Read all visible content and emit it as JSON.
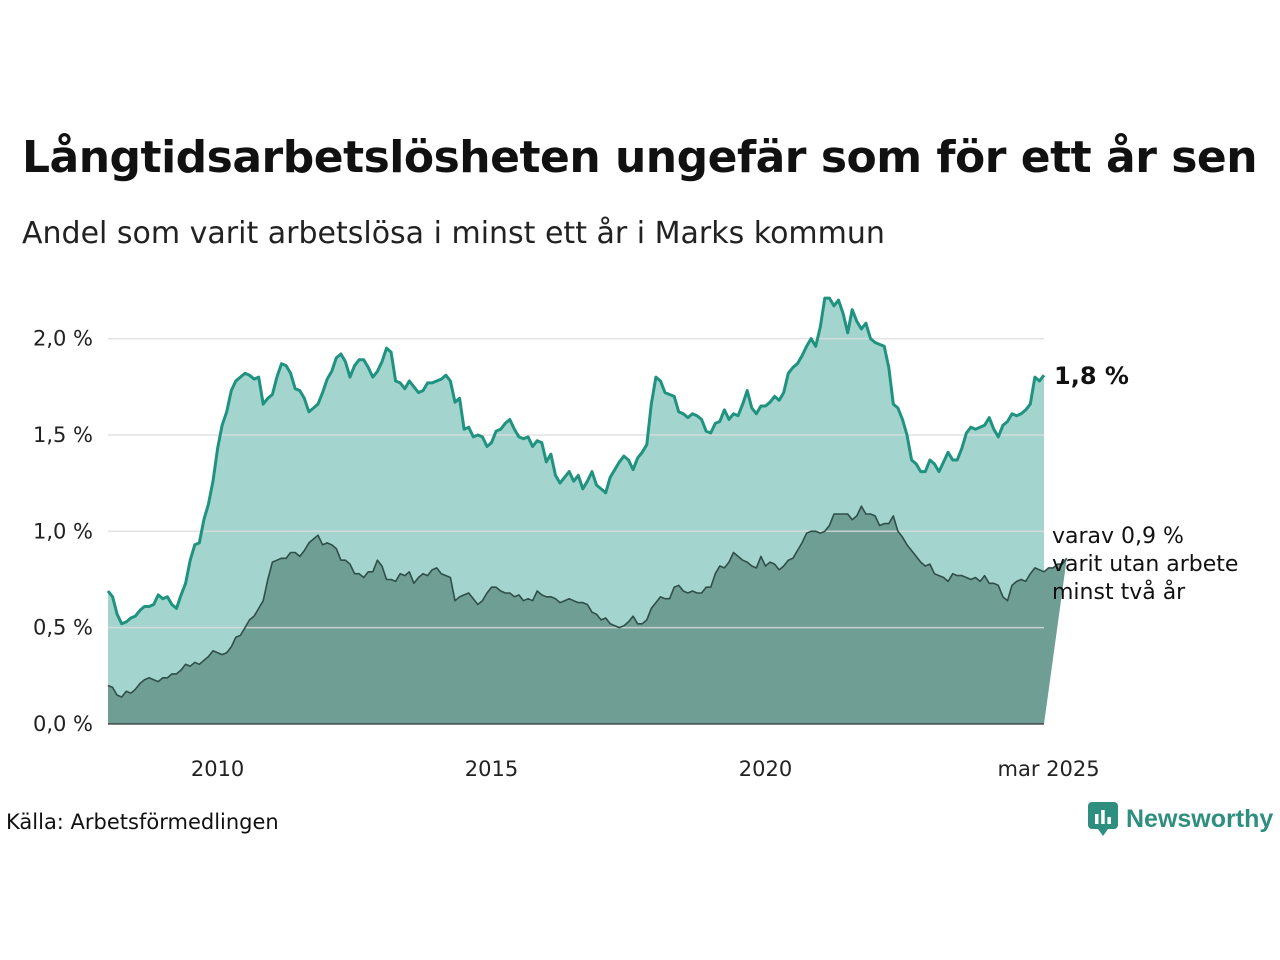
{
  "header": {
    "title": "Långtidsarbetslösheten ungefär som för ett år sen",
    "subtitle": "Andel som varit arbetslösa i minst ett år i Marks kommun"
  },
  "footer": {
    "source": "Källa: Arbetsförmedlingen",
    "brand": "Newsworthy"
  },
  "colors": {
    "total_line": "#1f9280",
    "total_fill": "#a3d5ce",
    "longterm_line": "#2f4f48",
    "longterm_fill": "#6f9e95",
    "grid": "#dddddd"
  },
  "chart_data": {
    "type": "area",
    "x_start": "2008-01",
    "x_end": "2025-03",
    "x_ticks": [
      "2010",
      "2015",
      "2020",
      "mar 2025"
    ],
    "y_ticks": [
      "0,0 %",
      "0,5 %",
      "1,0 %",
      "1,5 %",
      "2,0 %"
    ],
    "ylim": [
      0,
      2.2
    ],
    "grid": true,
    "annotations": {
      "last_total": "1,8 %",
      "last_longterm": [
        "varav 0,9 %",
        "varit utan arbete",
        "minst två år"
      ]
    },
    "series": [
      {
        "key": "total",
        "values": [
          0.69,
          0.66,
          0.57,
          0.52,
          0.53,
          0.55,
          0.56,
          0.59,
          0.61,
          0.61,
          0.62,
          0.67,
          0.65,
          0.66,
          0.62,
          0.6,
          0.67,
          0.73,
          0.85,
          0.93,
          0.94,
          1.06,
          1.14,
          1.26,
          1.43,
          1.55,
          1.62,
          1.73,
          1.78,
          1.8,
          1.82,
          1.81,
          1.79,
          1.8,
          1.66,
          1.69,
          1.71,
          1.8,
          1.87,
          1.86,
          1.82,
          1.74,
          1.73,
          1.69,
          1.62,
          1.64,
          1.66,
          1.72,
          1.79,
          1.83,
          1.9,
          1.92,
          1.88,
          1.8,
          1.86,
          1.89,
          1.89,
          1.85,
          1.8,
          1.83,
          1.88,
          1.95,
          1.93,
          1.78,
          1.77,
          1.74,
          1.78,
          1.75,
          1.72,
          1.73,
          1.77,
          1.77,
          1.78,
          1.79,
          1.81,
          1.78,
          1.67,
          1.69,
          1.53,
          1.54,
          1.49,
          1.5,
          1.49,
          1.44,
          1.46,
          1.52,
          1.53,
          1.56,
          1.58,
          1.53,
          1.49,
          1.48,
          1.49,
          1.44,
          1.47,
          1.46,
          1.36,
          1.4,
          1.29,
          1.25,
          1.28,
          1.31,
          1.26,
          1.29,
          1.22,
          1.26,
          1.31,
          1.24,
          1.22,
          1.2,
          1.28,
          1.32,
          1.36,
          1.39,
          1.37,
          1.32,
          1.38,
          1.41,
          1.45,
          1.66,
          1.8,
          1.78,
          1.72,
          1.71,
          1.7,
          1.62,
          1.61,
          1.59,
          1.61,
          1.6,
          1.58,
          1.52,
          1.51,
          1.56,
          1.57,
          1.63,
          1.58,
          1.61,
          1.6,
          1.66,
          1.73,
          1.64,
          1.61,
          1.65,
          1.65,
          1.67,
          1.7,
          1.68,
          1.72,
          1.82,
          1.85,
          1.87,
          1.91,
          1.96,
          2.0,
          1.96,
          2.06,
          2.21,
          2.21,
          2.17,
          2.2,
          2.13,
          2.03,
          2.15,
          2.09,
          2.05,
          2.08,
          2.0,
          1.98,
          1.97,
          1.96,
          1.85,
          1.66,
          1.64,
          1.58,
          1.5,
          1.37,
          1.35,
          1.31,
          1.31,
          1.37,
          1.35,
          1.31,
          1.36,
          1.41,
          1.37,
          1.37,
          1.43,
          1.51,
          1.54,
          1.53,
          1.54,
          1.55,
          1.59,
          1.53,
          1.49,
          1.55,
          1.57,
          1.61,
          1.6,
          1.61,
          1.63,
          1.66,
          1.8,
          1.78,
          1.81
        ]
      },
      {
        "key": "longterm",
        "values": [
          0.2,
          0.19,
          0.15,
          0.14,
          0.17,
          0.16,
          0.18,
          0.21,
          0.23,
          0.24,
          0.23,
          0.22,
          0.24,
          0.24,
          0.26,
          0.26,
          0.28,
          0.31,
          0.3,
          0.32,
          0.31,
          0.33,
          0.35,
          0.38,
          0.37,
          0.36,
          0.37,
          0.4,
          0.45,
          0.46,
          0.5,
          0.54,
          0.56,
          0.6,
          0.64,
          0.75,
          0.84,
          0.85,
          0.86,
          0.86,
          0.89,
          0.89,
          0.87,
          0.9,
          0.94,
          0.96,
          0.98,
          0.93,
          0.94,
          0.93,
          0.91,
          0.85,
          0.85,
          0.83,
          0.78,
          0.78,
          0.76,
          0.79,
          0.79,
          0.85,
          0.82,
          0.75,
          0.75,
          0.74,
          0.78,
          0.77,
          0.79,
          0.73,
          0.76,
          0.78,
          0.77,
          0.8,
          0.81,
          0.78,
          0.77,
          0.76,
          0.64,
          0.66,
          0.67,
          0.68,
          0.65,
          0.62,
          0.64,
          0.68,
          0.71,
          0.71,
          0.69,
          0.68,
          0.68,
          0.66,
          0.67,
          0.64,
          0.65,
          0.64,
          0.69,
          0.67,
          0.66,
          0.66,
          0.65,
          0.63,
          0.64,
          0.65,
          0.64,
          0.63,
          0.63,
          0.62,
          0.58,
          0.57,
          0.54,
          0.55,
          0.52,
          0.51,
          0.5,
          0.51,
          0.53,
          0.56,
          0.52,
          0.52,
          0.54,
          0.6,
          0.63,
          0.66,
          0.65,
          0.65,
          0.71,
          0.72,
          0.69,
          0.68,
          0.69,
          0.68,
          0.68,
          0.71,
          0.71,
          0.78,
          0.82,
          0.81,
          0.84,
          0.89,
          0.87,
          0.85,
          0.84,
          0.82,
          0.81,
          0.87,
          0.82,
          0.84,
          0.83,
          0.8,
          0.82,
          0.85,
          0.86,
          0.9,
          0.94,
          0.99,
          1.0,
          1.0,
          0.99,
          1.0,
          1.03,
          1.09,
          1.09,
          1.09,
          1.09,
          1.06,
          1.08,
          1.13,
          1.09,
          1.09,
          1.08,
          1.03,
          1.04,
          1.04,
          1.08,
          1.0,
          0.97,
          0.93,
          0.9,
          0.87,
          0.84,
          0.82,
          0.83,
          0.78,
          0.77,
          0.76,
          0.74,
          0.78,
          0.77,
          0.77,
          0.76,
          0.75,
          0.76,
          0.74,
          0.77,
          0.73,
          0.73,
          0.72,
          0.66,
          0.64,
          0.72,
          0.74,
          0.75,
          0.74,
          0.78,
          0.81,
          0.8,
          0.79,
          0.81,
          0.81,
          0.83,
          0.83,
          0.86
        ]
      }
    ]
  }
}
